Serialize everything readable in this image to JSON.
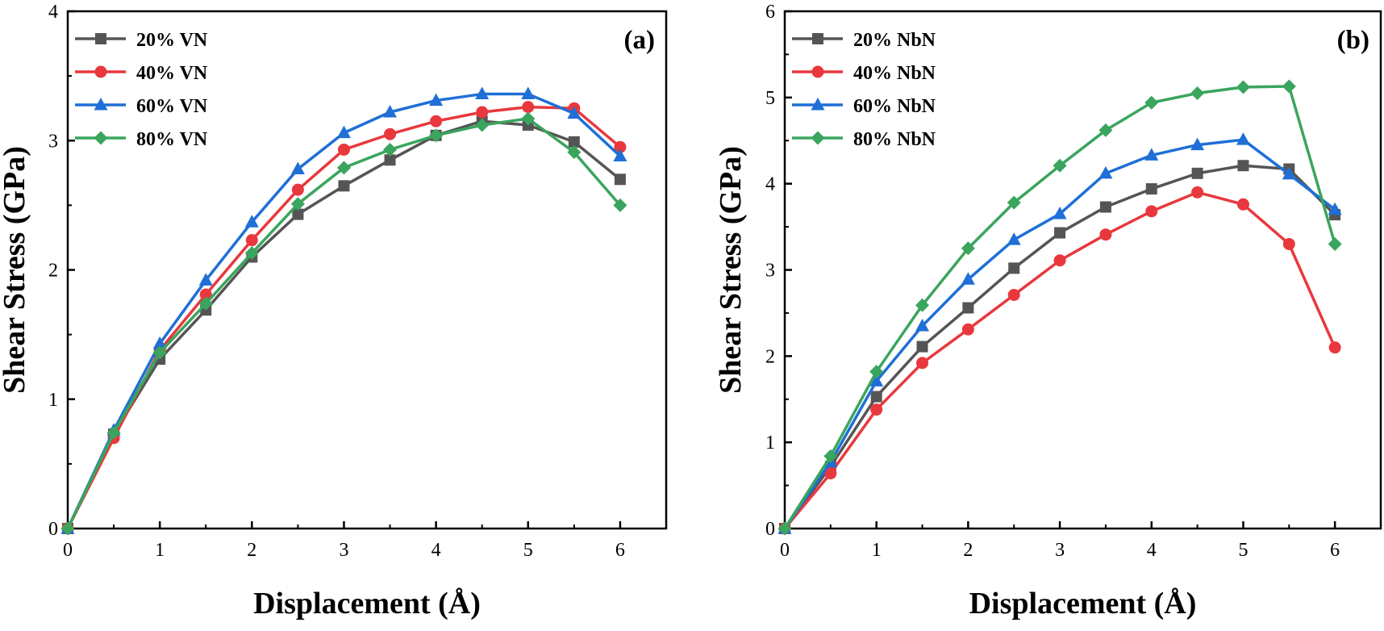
{
  "chart_data": [
    {
      "type": "line",
      "panel_label": "(a)",
      "xlabel": "Displacement (Å)",
      "ylabel": "Shear Stress (GPa)",
      "xlim": [
        0,
        6.5
      ],
      "ylim": [
        0,
        4
      ],
      "xticks": [
        "0",
        "1",
        "2",
        "3",
        "4",
        "5",
        "6"
      ],
      "yticks": [
        "0",
        "1",
        "2",
        "3",
        "4"
      ],
      "legend_position": "top-left",
      "x": [
        0,
        0.5,
        1,
        1.5,
        2,
        2.5,
        3,
        3.5,
        4,
        4.5,
        5,
        5.5,
        6
      ],
      "series": [
        {
          "name": "20% VN",
          "color": "#555555",
          "marker": "square",
          "values": [
            0,
            0.73,
            1.31,
            1.69,
            2.1,
            2.43,
            2.65,
            2.85,
            3.04,
            3.15,
            3.12,
            2.99,
            2.7
          ]
        },
        {
          "name": "40% VN",
          "color": "#e8383d",
          "marker": "circle",
          "values": [
            0,
            0.7,
            1.38,
            1.81,
            2.23,
            2.62,
            2.93,
            3.05,
            3.15,
            3.22,
            3.26,
            3.25,
            2.95
          ]
        },
        {
          "name": "60% VN",
          "color": "#1f6fd6",
          "marker": "triangle",
          "values": [
            0,
            0.76,
            1.43,
            1.92,
            2.37,
            2.78,
            3.06,
            3.22,
            3.31,
            3.36,
            3.36,
            3.21,
            2.88
          ]
        },
        {
          "name": "80% VN",
          "color": "#3aa55d",
          "marker": "diamond",
          "values": [
            0,
            0.74,
            1.36,
            1.74,
            2.13,
            2.51,
            2.79,
            2.93,
            3.04,
            3.12,
            3.17,
            2.91,
            2.5
          ]
        }
      ]
    },
    {
      "type": "line",
      "panel_label": "(b)",
      "xlabel": "Displacement (Å)",
      "ylabel": "Shear Stress (GPa)",
      "xlim": [
        0,
        6.5
      ],
      "ylim": [
        0,
        6
      ],
      "xticks": [
        "0",
        "1",
        "2",
        "3",
        "4",
        "5",
        "6"
      ],
      "yticks": [
        "0",
        "1",
        "2",
        "3",
        "4",
        "5",
        "6"
      ],
      "legend_position": "top-left",
      "x": [
        0,
        0.5,
        1,
        1.5,
        2,
        2.5,
        3,
        3.5,
        4,
        4.5,
        5,
        5.5,
        6
      ],
      "series": [
        {
          "name": "20% NbN",
          "color": "#555555",
          "marker": "square",
          "values": [
            0,
            0.72,
            1.53,
            2.11,
            2.56,
            3.02,
            3.43,
            3.73,
            3.94,
            4.12,
            4.21,
            4.17,
            3.64
          ]
        },
        {
          "name": "40% NbN",
          "color": "#e8383d",
          "marker": "circle",
          "values": [
            0,
            0.64,
            1.38,
            1.92,
            2.31,
            2.71,
            3.11,
            3.41,
            3.68,
            3.9,
            3.76,
            3.3,
            2.1
          ]
        },
        {
          "name": "60% NbN",
          "color": "#1f6fd6",
          "marker": "triangle",
          "values": [
            0,
            0.77,
            1.71,
            2.35,
            2.89,
            3.35,
            3.65,
            4.12,
            4.33,
            4.45,
            4.51,
            4.11,
            3.7
          ]
        },
        {
          "name": "80% NbN",
          "color": "#3aa55d",
          "marker": "diamond",
          "values": [
            0,
            0.84,
            1.82,
            2.59,
            3.25,
            3.78,
            4.21,
            4.62,
            4.94,
            5.05,
            5.12,
            5.13,
            3.3
          ]
        }
      ]
    }
  ]
}
